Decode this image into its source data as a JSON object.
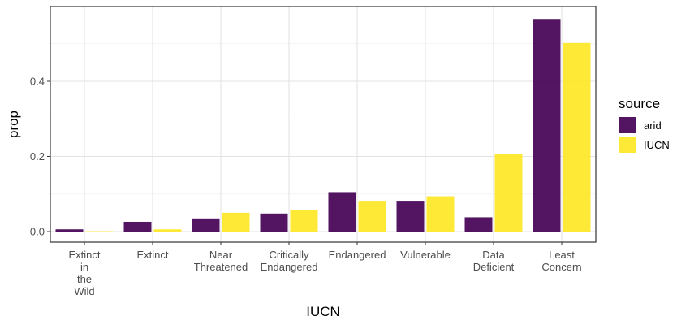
{
  "chart_data": {
    "type": "bar",
    "xlabel": "IUCN",
    "ylabel": "prop",
    "ylim": [
      0,
      0.58
    ],
    "yticks": [
      0.0,
      0.2,
      0.4
    ],
    "ytick_labels": [
      "0.0",
      "0.2",
      "0.4"
    ],
    "grid": true,
    "categories": [
      [
        "Extinct",
        "in",
        "the",
        "Wild"
      ],
      [
        "Extinct"
      ],
      [
        "Near",
        "Threatened"
      ],
      [
        "Critically",
        "Endangered"
      ],
      [
        "Endangered"
      ],
      [
        "Vulnerable"
      ],
      [
        "Data",
        "Deficient"
      ],
      [
        "Least",
        "Concern"
      ]
    ],
    "series": [
      {
        "name": "arid",
        "color": "#440154",
        "values": [
          0.006,
          0.026,
          0.035,
          0.048,
          0.105,
          0.082,
          0.038,
          0.566
        ]
      },
      {
        "name": "IUCN",
        "color": "#FDE725",
        "values": [
          0.001,
          0.006,
          0.05,
          0.057,
          0.082,
          0.094,
          0.207,
          0.502
        ]
      }
    ],
    "legend": {
      "title": "source",
      "position": "right"
    }
  }
}
